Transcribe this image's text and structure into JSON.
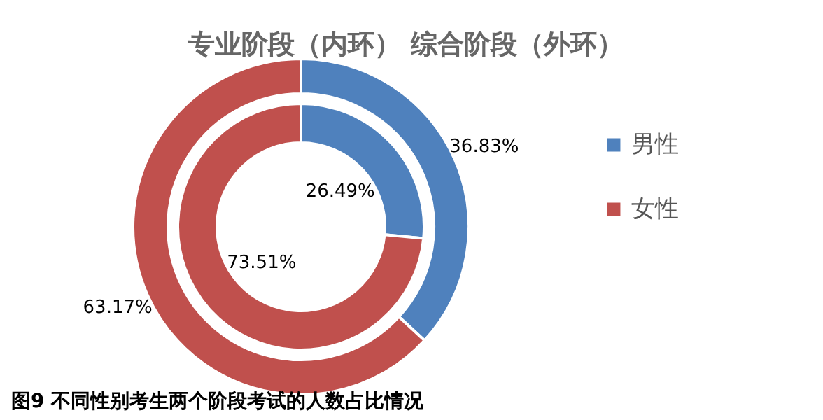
{
  "chart_data": {
    "type": "donut",
    "title": "专业阶段（内环）   综合阶段（外环）",
    "categories": [
      "男性",
      "女性"
    ],
    "colors": [
      "#4f81bd",
      "#c0504d"
    ],
    "legend": "right",
    "data_labels": true,
    "series": [
      {
        "values": [
          26.49,
          73.51
        ],
        "value_labels": [
          "26.49%",
          "73.51%"
        ]
      },
      {
        "values": [
          36.83,
          63.17
        ],
        "value_labels": [
          "36.83%",
          "63.17%"
        ]
      }
    ],
    "annotations": [
      "图9  不同性别考生两个阶段考试的人数占比情况"
    ]
  }
}
